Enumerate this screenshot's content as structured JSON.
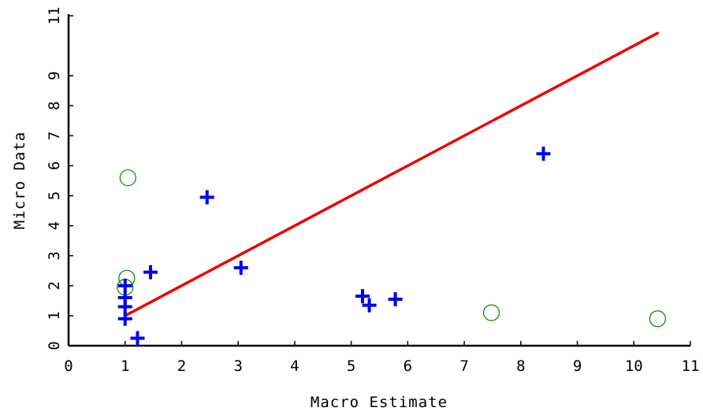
{
  "chart_data": {
    "type": "scatter",
    "title": "",
    "xlabel": "Macro Estimate",
    "ylabel": "Micro Data",
    "xlim": [
      0,
      11
    ],
    "ylim": [
      0,
      11
    ],
    "x_ticks": [
      "0",
      "1",
      "2",
      "3",
      "4",
      "5",
      "6",
      "7",
      "8",
      "9",
      "10",
      "11"
    ],
    "y_ticks": [
      "0",
      "1",
      "2",
      "3",
      "4",
      "5",
      "6",
      "7",
      "8",
      "9",
      "11"
    ],
    "grid": false,
    "legend": "none",
    "series": [
      {
        "marker": "plus",
        "color": "#0000ee",
        "points": [
          {
            "x": 1.0,
            "y": 2.0
          },
          {
            "x": 1.0,
            "y": 1.6
          },
          {
            "x": 1.0,
            "y": 1.3
          },
          {
            "x": 1.0,
            "y": 0.9
          },
          {
            "x": 1.22,
            "y": 0.25
          },
          {
            "x": 1.45,
            "y": 2.45
          },
          {
            "x": 2.45,
            "y": 4.95
          },
          {
            "x": 3.05,
            "y": 2.6
          },
          {
            "x": 5.2,
            "y": 1.65
          },
          {
            "x": 5.32,
            "y": 1.35
          },
          {
            "x": 5.78,
            "y": 1.55
          },
          {
            "x": 8.4,
            "y": 6.4
          }
        ]
      },
      {
        "marker": "circle",
        "color": "#008000",
        "points": [
          {
            "x": 1.05,
            "y": 5.6
          },
          {
            "x": 1.03,
            "y": 2.25
          },
          {
            "x": 1.0,
            "y": 1.95
          },
          {
            "x": 7.48,
            "y": 1.1
          },
          {
            "x": 10.42,
            "y": 0.9
          }
        ]
      },
      {
        "marker": "line",
        "color": "#ee0000",
        "points": [
          {
            "x": 1.0,
            "y": 1.0
          },
          {
            "x": 10.42,
            "y": 10.42
          }
        ]
      }
    ]
  }
}
